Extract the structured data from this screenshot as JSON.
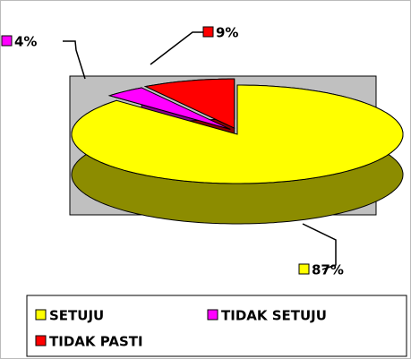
{
  "chart_data": {
    "type": "pie3d",
    "categories": [
      "SETUJU",
      "TIDAK SETUJU",
      "TIDAK PASTI"
    ],
    "values": [
      87,
      4,
      9
    ],
    "value_labels": [
      "87%",
      "4%",
      "9%"
    ],
    "colors": [
      "#ffff00",
      "#ff00ff",
      "#ff0000"
    ],
    "legend": "bottom"
  }
}
